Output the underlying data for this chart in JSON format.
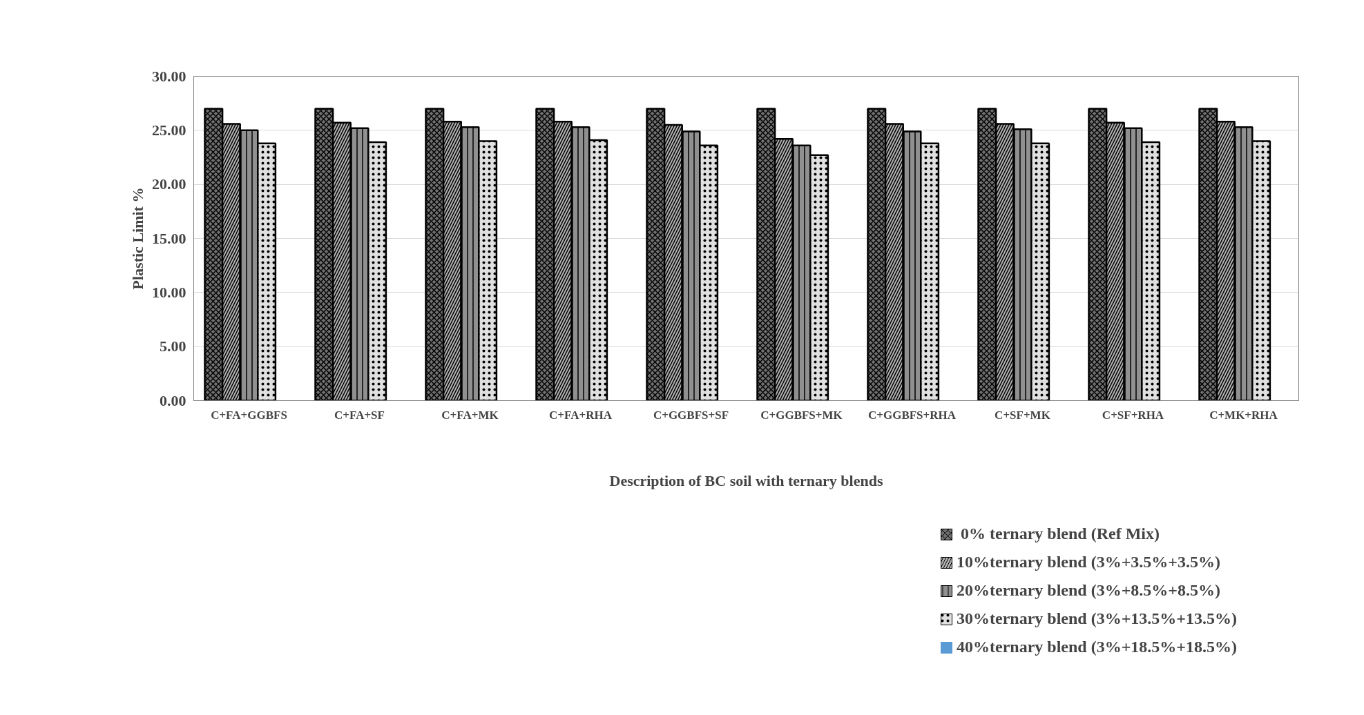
{
  "chart_data": {
    "type": "bar",
    "xlabel": "Description of BC soil with ternary blends",
    "ylabel": "Plastic Limit %",
    "categories": [
      "C+FA+GGBFS",
      "C+FA+SF",
      "C+FA+MK",
      "C+FA+RHA",
      "C+GGBFS+SF",
      "C+GGBFS+MK",
      "C+GGBFS+RHA",
      "C+SF+MK",
      "C+SF+RHA",
      "C+MK+RHA"
    ],
    "series": [
      {
        "name": " 0% ternary blend (Ref Mix)",
        "color": "#707070",
        "values": [
          27.0,
          27.0,
          27.0,
          27.0,
          27.0,
          27.0,
          27.0,
          27.0,
          27.0,
          27.0
        ]
      },
      {
        "name": "10%ternary blend (3%+3.5%+3.5%)",
        "color": "#b0b0b0",
        "values": [
          25.6,
          25.7,
          25.8,
          25.8,
          25.5,
          24.2,
          25.6,
          25.6,
          25.7,
          25.8
        ]
      },
      {
        "name": "20%ternary blend (3%+8.5%+8.5%)",
        "color": "#909090",
        "values": [
          25.0,
          25.2,
          25.3,
          25.3,
          24.9,
          23.6,
          24.9,
          25.1,
          25.2,
          25.3
        ]
      },
      {
        "name": "30%ternary blend (3%+13.5%+13.5%)",
        "color": "#e0e0e0",
        "values": [
          23.8,
          23.9,
          24.0,
          24.1,
          23.6,
          22.7,
          23.8,
          23.8,
          23.9,
          24.0
        ]
      },
      {
        "name": "40%ternary blend (3%+18.5%+18.5%)",
        "color": "#5b9bd5",
        "values": [
          null,
          null,
          null,
          null,
          null,
          null,
          null,
          null,
          null,
          null
        ]
      }
    ],
    "ylim": [
      0,
      30
    ],
    "yticks": [
      {
        "value": 0,
        "label": "0.00"
      },
      {
        "value": 5,
        "label": "5.00"
      },
      {
        "value": 10,
        "label": "10.00"
      },
      {
        "value": 15,
        "label": "15.00"
      },
      {
        "value": 20,
        "label": "20.00"
      },
      {
        "value": 25,
        "label": "25.00"
      },
      {
        "value": 30,
        "label": "30.00"
      }
    ],
    "grid": "y",
    "legend": "bottom right"
  }
}
